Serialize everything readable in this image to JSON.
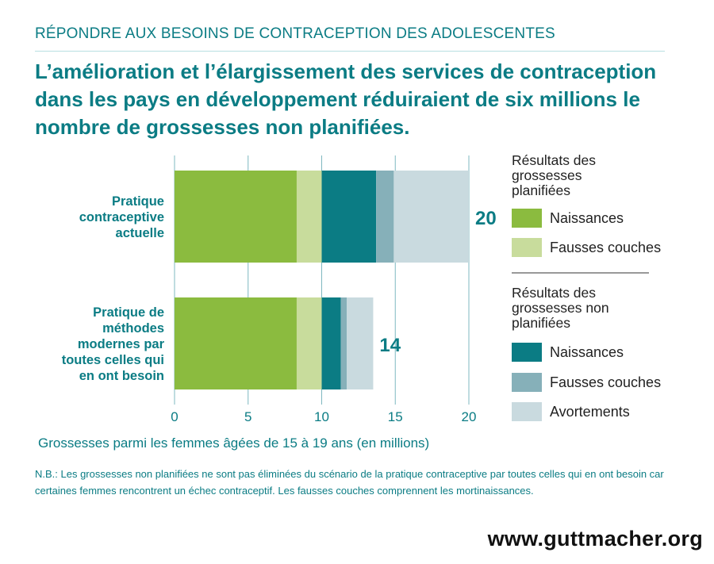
{
  "header": {
    "kicker": "RÉPONDRE AUX BESOINS DE CONTRACEPTION DES ADOLESCENTES",
    "headline": "L’amélioration et l’élargissement des services de contraception dans les pays en développement réduiraient de six millions le nombre de grossesses non planifiées."
  },
  "chart_data": {
    "type": "bar",
    "orientation": "horizontal",
    "stacked": true,
    "categories": [
      "Pratique contraceptive actuelle",
      "Pratique de méthodes modernes par toutes celles qui en ont besoin"
    ],
    "category_lines": [
      [
        "Pratique",
        "contraceptive",
        "actuelle"
      ],
      [
        "Pratique de",
        "méthodes",
        "modernes par",
        "toutes celles qui",
        "en ont besoin"
      ]
    ],
    "totals": [
      "20",
      "14"
    ],
    "xlabel": "Grossesses parmi les femmes âgées de 15 à 19 ans (en millions)",
    "xlim": [
      0,
      20
    ],
    "xticks": [
      0,
      5,
      10,
      15,
      20
    ],
    "grid": true,
    "series": [
      {
        "name": "Naissances",
        "group": 0,
        "color": "#8bbb3f",
        "values": [
          8.3,
          8.3
        ]
      },
      {
        "name": "Fausses couches",
        "group": 0,
        "color": "#c8dc9c",
        "values": [
          1.7,
          1.7
        ]
      },
      {
        "name": "Naissances",
        "group": 1,
        "color": "#0b7c84",
        "values": [
          3.7,
          1.3
        ]
      },
      {
        "name": "Fausses couches",
        "group": 1,
        "color": "#86b0b9",
        "values": [
          1.2,
          0.4
        ]
      },
      {
        "name": "Avortements",
        "group": 1,
        "color": "#c9dadf",
        "values": [
          5.1,
          1.8
        ]
      }
    ],
    "legend": {
      "placement": "right",
      "groups": [
        "Résultats des grossesses planifiées",
        "Résultats des grossesses non planifiées"
      ],
      "group_lines": [
        [
          "Résultats des",
          "grossesses",
          "planifiées"
        ],
        [
          "Résultats des",
          "grossesses non",
          "planifiées"
        ]
      ]
    }
  },
  "footer": {
    "note": "N.B.: Les grossesses non planifiées ne sont pas éliminées du scénario de la pratique contraceptive par toutes celles qui en ont besoin car certaines femmes rencontrent un échec contraceptif. Les fausses couches comprennent les mortinaissances.",
    "website": "www.guttmacher.org"
  },
  "colors": {
    "accent": "#0b7c84",
    "grid": "#7fb8c0",
    "text_dark": "#111111"
  }
}
